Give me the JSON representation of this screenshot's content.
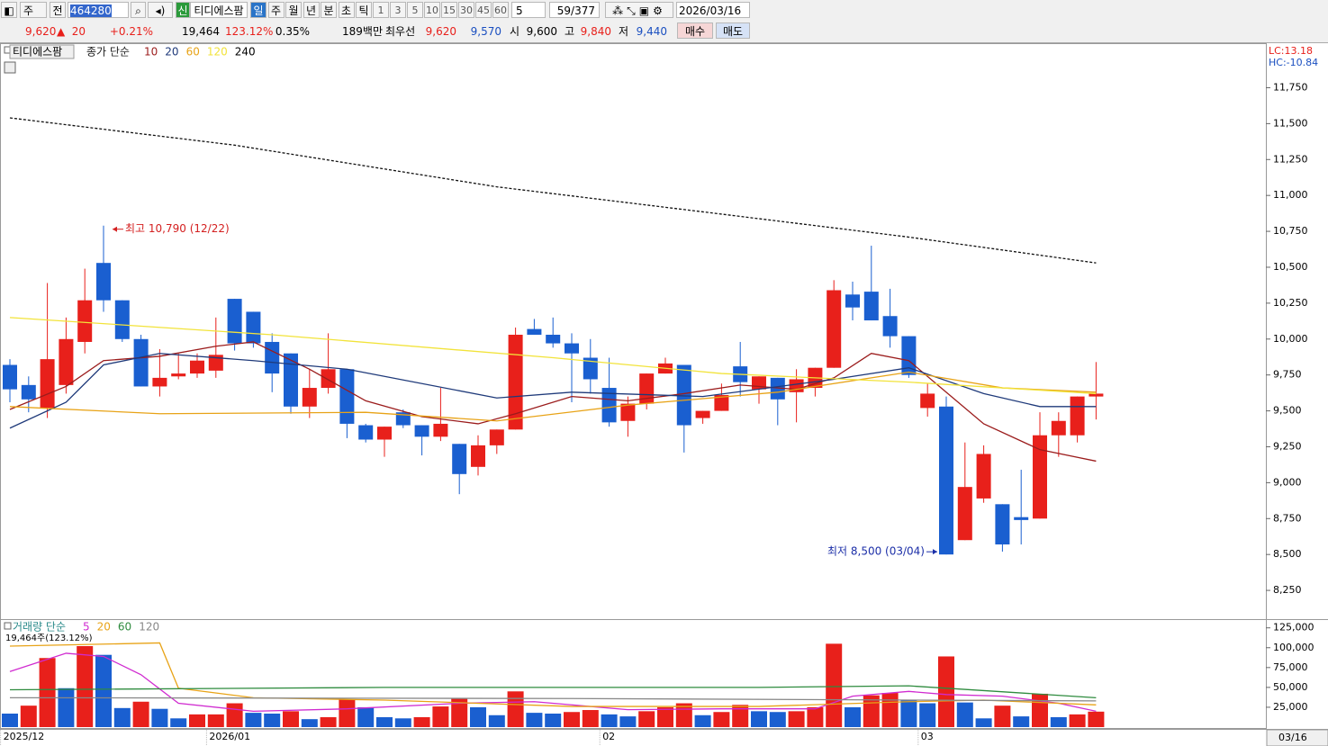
{
  "toolbar": {
    "period": "주",
    "prev": "전",
    "code": "464280",
    "credit": "신",
    "name": "티디에스팜",
    "units": [
      "일",
      "주",
      "월",
      "년",
      "분",
      "초",
      "틱"
    ],
    "minutes": [
      "1",
      "3",
      "5",
      "10",
      "15",
      "30",
      "45",
      "60"
    ],
    "count": "5",
    "position": "59/377",
    "date": "2026/03/16"
  },
  "quote": {
    "close": "9,620",
    "change": "20",
    "change_pct": "+0.21%",
    "volume": "19,464",
    "volume_ratio": "123.12%",
    "turnover": "0.35%",
    "amount": "189백만",
    "best_label": "최우선",
    "best_ask": "9,620",
    "best_bid": "9,570",
    "open_label": "시",
    "open": "9,600",
    "high_label": "고",
    "high": "9,840",
    "low_label": "저",
    "low": "9,440",
    "buy": "매수",
    "sell": "매도"
  },
  "chart_data": [
    {
      "type": "candlestick",
      "legend_name": "티디에스팜",
      "ma_label": "종가 단순",
      "lc_label": "LC:13.18",
      "hc_label": "HC:-10.84",
      "up_color": "#e8201b",
      "down_color": "#1a5fd0",
      "open": [
        9820,
        9680,
        9520,
        9680,
        9980,
        10530,
        10270,
        10000,
        9670,
        9740,
        9760,
        9780,
        10280,
        10190,
        9980,
        9900,
        9530,
        9660,
        9790,
        9400,
        9300,
        9490,
        9400,
        9320,
        9270,
        9110,
        9260,
        9370,
        10070,
        10030,
        9970,
        9870,
        9660,
        9430,
        9550,
        9760,
        9820,
        9450,
        9500,
        9810,
        9650,
        9730,
        9630,
        9660,
        9800,
        10310,
        10330,
        10160,
        10020,
        9520,
        9530,
        8600,
        8890,
        8850,
        8760,
        8750,
        9330,
        9330,
        9600
      ],
      "high": [
        9860,
        9740,
        10390,
        10150,
        10490,
        10790,
        10270,
        10030,
        9930,
        9900,
        9900,
        10150,
        10280,
        10190,
        10040,
        9900,
        9790,
        10040,
        9790,
        9410,
        9390,
        9510,
        9400,
        9660,
        9270,
        9330,
        9370,
        10080,
        10140,
        10150,
        10040,
        10000,
        9870,
        9600,
        9760,
        9870,
        9820,
        9500,
        9690,
        9980,
        9740,
        9730,
        9790,
        9800,
        10410,
        10400,
        10650,
        10350,
        10020,
        9690,
        9600,
        9280,
        9260,
        8850,
        9090,
        9490,
        9490,
        9600,
        9840
      ],
      "low": [
        9560,
        9490,
        9450,
        9620,
        9900,
        10190,
        9980,
        9670,
        9600,
        9720,
        9730,
        9730,
        9920,
        9940,
        9630,
        9480,
        9450,
        9620,
        9310,
        9280,
        9180,
        9380,
        9190,
        9290,
        8920,
        9050,
        9200,
        9370,
        10030,
        9940,
        9560,
        9620,
        9390,
        9320,
        9510,
        9760,
        9210,
        9410,
        9500,
        9600,
        9550,
        9400,
        9420,
        9600,
        9800,
        10130,
        10130,
        9940,
        9730,
        9460,
        8500,
        8600,
        8860,
        8520,
        8570,
        8750,
        9180,
        9280,
        9440
      ],
      "close": [
        9650,
        9580,
        9860,
        10000,
        10270,
        10270,
        10000,
        9670,
        9730,
        9760,
        9850,
        9890,
        9970,
        9970,
        9760,
        9530,
        9660,
        9790,
        9410,
        9300,
        9390,
        9400,
        9320,
        9410,
        9060,
        9260,
        9370,
        10030,
        10030,
        9970,
        9900,
        9720,
        9420,
        9550,
        9760,
        9830,
        9400,
        9500,
        9610,
        9700,
        9740,
        9580,
        9720,
        9800,
        10340,
        10220,
        10130,
        10020,
        9750,
        9620,
        8500,
        8970,
        9200,
        8570,
        8740,
        9330,
        9430,
        9600,
        9620
      ],
      "moving_averages": [
        {
          "name": "10",
          "color": "#9b1c1c",
          "x": [
            0,
            3,
            5,
            8,
            11,
            13,
            16,
            19,
            22,
            25,
            27,
            30,
            33,
            36,
            39,
            42,
            44,
            46,
            48,
            50,
            52,
            55,
            58
          ],
          "values": [
            9510,
            9670,
            9850,
            9880,
            9950,
            9980,
            9790,
            9570,
            9460,
            9410,
            9480,
            9600,
            9570,
            9620,
            9680,
            9650,
            9730,
            9900,
            9850,
            9630,
            9410,
            9230,
            9150
          ]
        },
        {
          "name": "20",
          "color": "#1f3a7a",
          "x": [
            0,
            3,
            5,
            8,
            13,
            18,
            26,
            30,
            37,
            44,
            48,
            52,
            55,
            58
          ],
          "values": [
            9380,
            9560,
            9820,
            9900,
            9850,
            9790,
            9590,
            9630,
            9600,
            9720,
            9800,
            9620,
            9530,
            9530
          ]
        },
        {
          "name": "60",
          "color": "#e8a317",
          "x": [
            0,
            8,
            19,
            26,
            33,
            41,
            48,
            53,
            58
          ],
          "values": [
            9530,
            9480,
            9490,
            9430,
            9540,
            9630,
            9770,
            9660,
            9630
          ]
        },
        {
          "name": "120",
          "color": "#f2e33a",
          "x": [
            0,
            14,
            29,
            38,
            48,
            58
          ],
          "values": [
            10150,
            10030,
            9870,
            9760,
            9700,
            9620
          ]
        },
        {
          "name": "240",
          "color": "#111111",
          "dashed": true,
          "x": [
            0,
            12,
            26,
            38,
            48,
            58
          ],
          "values": [
            11540,
            11350,
            11060,
            10870,
            10710,
            10530
          ]
        }
      ],
      "annotations": [
        {
          "text": "최고 10,790 (12/22)",
          "value": 10790,
          "color": "#d42020"
        },
        {
          "text": "최저 8,500 (03/04)",
          "value": 8500,
          "color": "#1c2fa8"
        }
      ],
      "ylim": [
        8050,
        12060
      ],
      "yticks": [
        {
          "value": 11750,
          "label": "11,750"
        },
        {
          "value": 11500,
          "label": "11,500"
        },
        {
          "value": 11250,
          "label": "11,250"
        },
        {
          "value": 11000,
          "label": "11,000"
        },
        {
          "value": 10750,
          "label": "10,750"
        },
        {
          "value": 10500,
          "label": "10,500"
        },
        {
          "value": 10250,
          "label": "10,250"
        },
        {
          "value": 10000,
          "label": "10,000"
        },
        {
          "value": 9750,
          "label": "9,750"
        },
        {
          "value": 9500,
          "label": "9,500"
        },
        {
          "value": 9250,
          "label": "9,250"
        },
        {
          "value": 9000,
          "label": "9,000"
        },
        {
          "value": 8750,
          "label": "8,750"
        },
        {
          "value": 8500,
          "label": "8,500"
        },
        {
          "value": 8250,
          "label": "8,250"
        }
      ]
    },
    {
      "type": "bar",
      "title": "거래량 단순",
      "value_label": "19,464주(123.12%)",
      "up_color": "#e8201b",
      "down_color": "#1a5fd0",
      "cursor_label": "03/16",
      "categories": [
        "2025/12",
        null,
        null,
        null,
        null,
        null,
        null,
        null,
        null,
        null,
        null,
        "2026/01",
        null,
        null,
        null,
        null,
        null,
        null,
        null,
        null,
        null,
        null,
        null,
        null,
        null,
        null,
        null,
        null,
        null,
        null,
        null,
        null,
        "02",
        null,
        null,
        null,
        null,
        null,
        null,
        null,
        null,
        null,
        null,
        null,
        null,
        null,
        null,
        null,
        null,
        "03",
        null,
        null,
        null,
        null,
        null,
        null,
        null,
        null,
        null
      ],
      "values": [
        17000,
        27000,
        87000,
        49000,
        102000,
        91000,
        24000,
        32000,
        23000,
        11000,
        16000,
        16000,
        30000,
        18000,
        17000,
        20000,
        10000,
        12500,
        35000,
        25000,
        12500,
        11000,
        12500,
        26000,
        36000,
        25000,
        15000,
        45000,
        18000,
        17000,
        19000,
        21500,
        16000,
        13500,
        20000,
        25000,
        30000,
        15000,
        19000,
        28000,
        20000,
        19000,
        20000,
        25000,
        105000,
        25000,
        40000,
        43000,
        34000,
        30000,
        89000,
        31000,
        11000,
        27000,
        13500,
        42000,
        12500,
        16000,
        19464
      ],
      "moving_averages": [
        {
          "name": "5",
          "color": "#d02bd0",
          "x": [
            0,
            3,
            5,
            7,
            9,
            13,
            18,
            24,
            28,
            33,
            38,
            43,
            45,
            48,
            50,
            53,
            56,
            58
          ],
          "values": [
            70000,
            93000,
            89000,
            66000,
            30000,
            20000,
            23000,
            30000,
            32000,
            22000,
            23000,
            23000,
            39000,
            45000,
            41000,
            39000,
            30000,
            20000
          ]
        },
        {
          "name": "20",
          "color": "#e8a317",
          "x": [
            0,
            8,
            9,
            13,
            20,
            30,
            40,
            48,
            52,
            58
          ],
          "values": [
            102000,
            106000,
            49000,
            37000,
            34000,
            26000,
            26000,
            32000,
            34000,
            28000
          ]
        },
        {
          "name": "60",
          "color": "#2e8b3e",
          "x": [
            0,
            20,
            40,
            48,
            58
          ],
          "values": [
            47000,
            50000,
            50000,
            52000,
            37000
          ]
        },
        {
          "name": "120",
          "color": "#888888",
          "x": [
            0,
            30,
            58
          ],
          "values": [
            37000,
            36000,
            33000
          ]
        }
      ],
      "ylim": [
        0,
        136000
      ],
      "yticks": [
        {
          "value": 125000,
          "label": "125,000"
        },
        {
          "value": 100000,
          "label": "100,000"
        },
        {
          "value": 75000,
          "label": "75,000"
        },
        {
          "value": 50000,
          "label": "50,000"
        },
        {
          "value": 25000,
          "label": "25,000"
        }
      ]
    }
  ]
}
